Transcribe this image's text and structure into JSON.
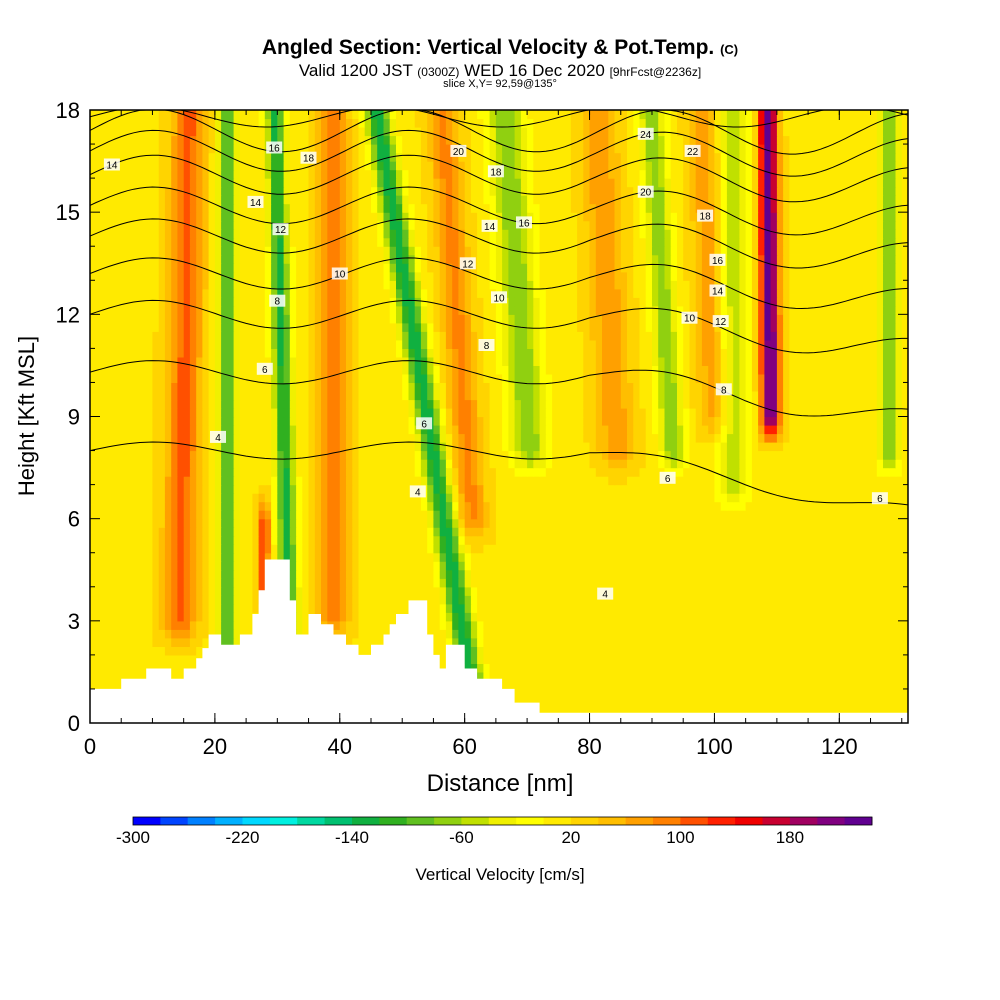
{
  "title": {
    "main": "Angled Section: Vertical Velocity & Pot.Temp.",
    "unit": "(C)",
    "valid_prefix": "Valid 1200 JST",
    "valid_utc": "(0300Z)",
    "valid_date": "WED 16 Dec 2020",
    "forecast": "[9hrFcst@2236z]",
    "slice": "slice X,Y= 92,59@135°"
  },
  "colorbar": {
    "label": "Vertical Velocity [cm/s]",
    "tick_labels": [
      "-300",
      "-220",
      "-140",
      "-60",
      "20",
      "100",
      "180"
    ],
    "levels": [
      -300,
      -280,
      -260,
      -240,
      -220,
      -200,
      -180,
      -160,
      -140,
      -120,
      -100,
      -80,
      -60,
      -40,
      -20,
      0,
      20,
      40,
      60,
      80,
      100,
      120,
      140,
      160,
      180,
      200,
      220
    ],
    "colors": [
      "#0000ff",
      "#0044ff",
      "#0080ff",
      "#00b0ff",
      "#00d8ff",
      "#00f0e0",
      "#00d8a0",
      "#00c070",
      "#10b040",
      "#30b020",
      "#60c020",
      "#90d010",
      "#c0e000",
      "#f0f000",
      "#ffff00",
      "#ffea00",
      "#ffd400",
      "#ffbe00",
      "#ffa000",
      "#ff8000",
      "#ff5000",
      "#ff2000",
      "#f00000",
      "#c80030",
      "#a00060",
      "#800080",
      "#600090"
    ]
  },
  "chart_data": {
    "type": "heatmap",
    "xlabel": "Distance [nm]",
    "ylabel": "Height [Kft MSL]",
    "xlim": [
      0,
      131
    ],
    "ylim": [
      0,
      18
    ],
    "x_ticks": [
      0,
      20,
      40,
      60,
      80,
      100,
      120
    ],
    "y_ticks": [
      0,
      3,
      6,
      9,
      12,
      15,
      18
    ],
    "field": "Vertical Velocity [cm/s]",
    "bands": [
      {
        "center_x": 15,
        "slope_x_per_kft": 0.1,
        "width": 2.8,
        "peak": 90,
        "y_min": 3,
        "y_max": 18
      },
      {
        "center_x": 22,
        "slope_x_per_kft": 0.0,
        "width": 1.6,
        "peak": -120,
        "y_min": 2,
        "y_max": 18
      },
      {
        "center_x": 28,
        "slope_x_per_kft": 0.05,
        "width": 1.0,
        "peak": 110,
        "y_min": 4,
        "y_max": 6
      },
      {
        "center_x": 31,
        "slope_x_per_kft": -0.15,
        "width": 1.5,
        "peak": -140,
        "y_min": 0,
        "y_max": 18
      },
      {
        "center_x": 39,
        "slope_x_per_kft": 0.0,
        "width": 2.5,
        "peak": 70,
        "y_min": 3,
        "y_max": 18
      },
      {
        "center_x": 54,
        "slope_x_per_kft": -0.9,
        "width": 2.0,
        "peak": -150,
        "y_min": 0,
        "y_max": 18
      },
      {
        "center_x": 60,
        "slope_x_per_kft": -0.4,
        "width": 2.5,
        "peak": 70,
        "y_min": 6,
        "y_max": 18
      },
      {
        "center_x": 70,
        "slope_x_per_kft": -0.4,
        "width": 3.0,
        "peak": -90,
        "y_min": 8,
        "y_max": 18
      },
      {
        "center_x": 84,
        "slope_x_per_kft": -0.3,
        "width": 3.0,
        "peak": 60,
        "y_min": 8,
        "y_max": 18
      },
      {
        "center_x": 93,
        "slope_x_per_kft": -0.35,
        "width": 2.0,
        "peak": -90,
        "y_min": 8,
        "y_max": 18
      },
      {
        "center_x": 100,
        "slope_x_per_kft": -0.2,
        "width": 2.5,
        "peak": 60,
        "y_min": 9,
        "y_max": 18
      },
      {
        "center_x": 109,
        "slope_x_per_kft": -0.05,
        "width": 1.5,
        "peak": 220,
        "y_min": 9,
        "y_max": 18
      },
      {
        "center_x": 103,
        "slope_x_per_kft": 0.0,
        "width": 2.5,
        "peak": -70,
        "y_min": 7,
        "y_max": 18
      },
      {
        "center_x": 128,
        "slope_x_per_kft": 0.0,
        "width": 1.8,
        "peak": -100,
        "y_min": 8,
        "y_max": 18
      }
    ],
    "terrain": [
      [
        0,
        1
      ],
      [
        5,
        1
      ],
      [
        5,
        1.3
      ],
      [
        9,
        1.3
      ],
      [
        9,
        1.6
      ],
      [
        13,
        1.6
      ],
      [
        13,
        1.3
      ],
      [
        15,
        1.3
      ],
      [
        15,
        1.6
      ],
      [
        17,
        1.6
      ],
      [
        17,
        1.9
      ],
      [
        18,
        1.9
      ],
      [
        18,
        2.2
      ],
      [
        19,
        2.2
      ],
      [
        19,
        2.6
      ],
      [
        21,
        2.6
      ],
      [
        21,
        2.3
      ],
      [
        24,
        2.3
      ],
      [
        24,
        2.6
      ],
      [
        26,
        2.6
      ],
      [
        26,
        3.2
      ],
      [
        27,
        3.2
      ],
      [
        27,
        3.9
      ],
      [
        28,
        3.9
      ],
      [
        28,
        4.8
      ],
      [
        32,
        4.8
      ],
      [
        32,
        3.6
      ],
      [
        33,
        3.6
      ],
      [
        33,
        2.6
      ],
      [
        35,
        2.6
      ],
      [
        35,
        3.2
      ],
      [
        37,
        3.2
      ],
      [
        37,
        2.9
      ],
      [
        39,
        2.9
      ],
      [
        39,
        2.6
      ],
      [
        41,
        2.6
      ],
      [
        41,
        2.3
      ],
      [
        43,
        2.3
      ],
      [
        43,
        2.0
      ],
      [
        45,
        2.0
      ],
      [
        45,
        2.3
      ],
      [
        47,
        2.3
      ],
      [
        47,
        2.6
      ],
      [
        48,
        2.6
      ],
      [
        48,
        2.9
      ],
      [
        49,
        2.9
      ],
      [
        49,
        3.2
      ],
      [
        51,
        3.2
      ],
      [
        51,
        3.6
      ],
      [
        54,
        3.6
      ],
      [
        54,
        2.6
      ],
      [
        55,
        2.6
      ],
      [
        55,
        2.0
      ],
      [
        56,
        2.0
      ],
      [
        56,
        1.6
      ],
      [
        57,
        1.6
      ],
      [
        57,
        2.3
      ],
      [
        60,
        2.3
      ],
      [
        60,
        1.6
      ],
      [
        62,
        1.6
      ],
      [
        62,
        1.3
      ],
      [
        66,
        1.3
      ],
      [
        66,
        1.0
      ],
      [
        68,
        1.0
      ],
      [
        68,
        0.6
      ],
      [
        72,
        0.6
      ],
      [
        72,
        0.3
      ],
      [
        131,
        0.3
      ]
    ],
    "contours": [
      {
        "label": "4",
        "base_y": 8.0
      },
      {
        "label": "6",
        "base_y": 10.3
      },
      {
        "label": "8",
        "base_y": 12.0
      },
      {
        "label": "10",
        "base_y": 13.2
      },
      {
        "label": "12",
        "base_y": 14.3
      },
      {
        "label": "14",
        "base_y": 15.2
      },
      {
        "label": "16",
        "base_y": 16.1
      },
      {
        "label": "18",
        "base_y": 16.8
      },
      {
        "label": "20",
        "base_y": 17.4
      }
    ],
    "contour_labels": [
      {
        "text": "14",
        "x": 3.5,
        "y": 16.4
      },
      {
        "text": "16",
        "x": 29.5,
        "y": 16.9
      },
      {
        "text": "18",
        "x": 35,
        "y": 16.6
      },
      {
        "text": "14",
        "x": 26.5,
        "y": 15.3
      },
      {
        "text": "12",
        "x": 30.5,
        "y": 14.5
      },
      {
        "text": "10",
        "x": 40,
        "y": 13.2
      },
      {
        "text": "8",
        "x": 30,
        "y": 12.4
      },
      {
        "text": "6",
        "x": 28,
        "y": 10.4
      },
      {
        "text": "4",
        "x": 20.5,
        "y": 8.4
      },
      {
        "text": "20",
        "x": 59,
        "y": 16.8
      },
      {
        "text": "18",
        "x": 65,
        "y": 16.2
      },
      {
        "text": "14",
        "x": 64,
        "y": 14.6
      },
      {
        "text": "16",
        "x": 69.5,
        "y": 14.7
      },
      {
        "text": "12",
        "x": 60.5,
        "y": 13.5
      },
      {
        "text": "10",
        "x": 65.5,
        "y": 12.5
      },
      {
        "text": "8",
        "x": 63.5,
        "y": 11.1
      },
      {
        "text": "6",
        "x": 53.5,
        "y": 8.8
      },
      {
        "text": "4",
        "x": 52.5,
        "y": 6.8
      },
      {
        "text": "24",
        "x": 89,
        "y": 17.3
      },
      {
        "text": "22",
        "x": 96.5,
        "y": 16.8
      },
      {
        "text": "20",
        "x": 89,
        "y": 15.6
      },
      {
        "text": "18",
        "x": 98.5,
        "y": 14.9
      },
      {
        "text": "16",
        "x": 100.5,
        "y": 13.6
      },
      {
        "text": "14",
        "x": 100.5,
        "y": 12.7
      },
      {
        "text": "10",
        "x": 96,
        "y": 11.9
      },
      {
        "text": "12",
        "x": 101,
        "y": 11.8
      },
      {
        "text": "8",
        "x": 101.5,
        "y": 9.8
      },
      {
        "text": "6",
        "x": 92.5,
        "y": 7.2
      },
      {
        "text": "6",
        "x": 126.5,
        "y": 6.6
      },
      {
        "text": "4",
        "x": 82.5,
        "y": 3.8
      }
    ]
  }
}
